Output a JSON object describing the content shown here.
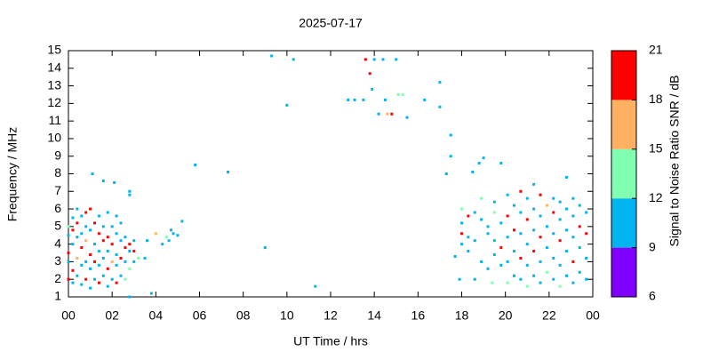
{
  "chart_data": {
    "type": "scatter",
    "title": "2025-07-17",
    "x_label": "UT Time / hrs",
    "y_label": "Frequency / MHz",
    "xlim": [
      0,
      24
    ],
    "xticks": [
      {
        "value": 0,
        "label": "00"
      },
      {
        "value": 2,
        "label": "02"
      },
      {
        "value": 4,
        "label": "04"
      },
      {
        "value": 6,
        "label": "06"
      },
      {
        "value": 8,
        "label": "08"
      },
      10,
      12,
      14,
      16,
      18,
      20,
      22,
      {
        "value": 24,
        "label": "00"
      }
    ],
    "ylim": [
      1,
      15
    ],
    "yticks": [
      1,
      2,
      3,
      4,
      5,
      6,
      7,
      8,
      9,
      10,
      11,
      12,
      13,
      14,
      15
    ],
    "grid": false,
    "colorbar": {
      "label": "Signal to Noise Ratio SNR / dB",
      "lim": [
        6,
        21
      ],
      "ticks": [
        6,
        9,
        12,
        15,
        18,
        21
      ],
      "colors": [
        "#8000ff",
        "#00b4f0",
        "#80ffb0",
        "#ffb060",
        "#ff0000"
      ]
    },
    "x": [
      0.0,
      0.0,
      0.0,
      0.0,
      0.0,
      0.2,
      0.2,
      0.2,
      0.2,
      0.2,
      0.4,
      0.4,
      0.4,
      0.4,
      0.4,
      0.6,
      0.6,
      0.6,
      0.6,
      0.6,
      0.8,
      0.8,
      0.8,
      0.8,
      0.8,
      1.0,
      1.0,
      1.0,
      1.0,
      1.0,
      1.2,
      1.2,
      1.2,
      1.2,
      1.4,
      1.4,
      1.4,
      1.4,
      1.4,
      1.6,
      1.6,
      1.6,
      1.6,
      1.8,
      1.8,
      1.8,
      1.8,
      1.8,
      2.0,
      2.0,
      2.0,
      2.0,
      2.2,
      2.2,
      2.2,
      2.2,
      2.2,
      2.4,
      2.4,
      2.4,
      2.4,
      2.6,
      2.6,
      2.6,
      2.6,
      2.8,
      2.8,
      2.8,
      2.8,
      2.8,
      3.0,
      3.0,
      3.0,
      1.1,
      1.6,
      2.1,
      2.8,
      3.8,
      3.2,
      3.5,
      3.6,
      4.0,
      4.3,
      4.5,
      4.6,
      4.7,
      5.0,
      5.2,
      4.8,
      5.8,
      7.3,
      9.0,
      9.3,
      10.0,
      10.3,
      11.3,
      12.8,
      13.1,
      13.5,
      13.6,
      13.8,
      13.9,
      14.0,
      14.2,
      14.4,
      14.5,
      14.6,
      14.8,
      15.0,
      15.1,
      15.3,
      15.5,
      16.3,
      17.0,
      17.0,
      17.3,
      17.5,
      17.5,
      17.7,
      17.9,
      18.5,
      18.8,
      19.0,
      19.8,
      19.4,
      18.0,
      18.0,
      18.0,
      18.0,
      18.3,
      18.3,
      18.3,
      18.6,
      18.6,
      18.6,
      18.9,
      18.9,
      18.9,
      19.2,
      19.2,
      19.2,
      19.5,
      19.5,
      19.5,
      19.5,
      19.8,
      19.8,
      19.8,
      20.1,
      20.1,
      20.1,
      20.1,
      20.1,
      20.4,
      20.4,
      20.4,
      20.4,
      20.7,
      20.7,
      20.7,
      20.7,
      20.7,
      21.0,
      21.0,
      21.0,
      21.0,
      21.0,
      21.3,
      21.3,
      21.3,
      21.3,
      21.3,
      21.6,
      21.6,
      21.6,
      21.6,
      21.6,
      21.9,
      21.9,
      21.9,
      21.9,
      22.2,
      22.2,
      22.2,
      22.2,
      22.2,
      22.5,
      22.5,
      22.5,
      22.5,
      22.5,
      22.8,
      22.8,
      22.8,
      22.8,
      22.8,
      23.1,
      23.1,
      23.1,
      23.1,
      23.1,
      23.4,
      23.4,
      23.4,
      23.4,
      23.7,
      23.7,
      23.7,
      23.7
    ],
    "values": [
      2.0,
      3.0,
      3.5,
      4.5,
      5.0,
      1.8,
      2.5,
      4.0,
      4.8,
      5.5,
      2.2,
      3.2,
      4.4,
      5.2,
      6.0,
      1.7,
      2.8,
      3.8,
      4.6,
      5.6,
      2.0,
      3.0,
      4.2,
      5.0,
      5.8,
      1.5,
      2.6,
      3.4,
      4.8,
      6.0,
      2.0,
      3.0,
      4.0,
      5.2,
      1.8,
      2.8,
      3.6,
      4.6,
      5.6,
      2.2,
      3.2,
      4.2,
      5.0,
      1.6,
      2.6,
      3.6,
      4.4,
      5.8,
      2.0,
      3.0,
      4.0,
      5.0,
      1.8,
      2.8,
      3.4,
      4.6,
      5.6,
      2.2,
      3.2,
      4.2,
      5.2,
      2.0,
      3.0,
      3.8,
      4.4,
      2.6,
      3.6,
      4.0,
      6.8,
      7.0,
      3.0,
      3.6,
      4.2,
      8.0,
      7.6,
      7.5,
      1.0,
      1.2,
      3.2,
      3.2,
      4.2,
      4.6,
      4.0,
      4.4,
      4.2,
      4.8,
      4.5,
      5.3,
      4.6,
      8.5,
      8.1,
      3.8,
      14.7,
      11.9,
      14.5,
      1.6,
      12.2,
      12.2,
      12.2,
      14.5,
      13.7,
      12.8,
      14.5,
      11.4,
      14.5,
      12.2,
      11.4,
      11.4,
      14.5,
      12.5,
      12.5,
      11.2,
      12.2,
      13.2,
      11.8,
      8.0,
      10.2,
      9.0,
      3.3,
      2.0,
      8.1,
      8.6,
      8.9,
      8.6,
      1.8,
      4.6,
      5.2,
      6.0,
      4.0,
      3.6,
      4.4,
      5.6,
      2.0,
      4.2,
      5.8,
      3.0,
      5.4,
      6.6,
      2.6,
      4.6,
      5.0,
      3.4,
      4.2,
      5.8,
      6.4,
      2.8,
      3.8,
      5.2,
      1.8,
      3.0,
      4.4,
      5.6,
      6.8,
      2.2,
      3.6,
      4.8,
      6.2,
      2.0,
      3.2,
      4.6,
      5.8,
      7.0,
      1.6,
      2.8,
      4.0,
      5.4,
      6.6,
      2.2,
      3.6,
      4.8,
      6.0,
      7.4,
      1.8,
      3.0,
      4.4,
      5.6,
      6.8,
      2.4,
      3.8,
      5.0,
      6.2,
      2.0,
      3.2,
      4.6,
      5.8,
      6.6,
      1.6,
      2.8,
      4.2,
      5.4,
      6.4,
      2.2,
      3.6,
      4.8,
      6.0,
      7.8,
      1.8,
      3.0,
      4.4,
      5.6,
      6.6,
      2.4,
      3.8,
      5.0,
      6.2,
      2.0,
      3.2,
      4.6,
      5.8
    ],
    "snr": [
      19,
      10,
      19,
      10,
      13,
      10,
      19,
      10,
      19,
      10,
      10,
      16,
      10,
      19,
      10,
      10,
      10,
      19,
      10,
      10,
      19,
      10,
      16,
      10,
      19,
      10,
      10,
      19,
      10,
      19,
      10,
      19,
      10,
      19,
      19,
      10,
      10,
      19,
      10,
      10,
      10,
      19,
      10,
      10,
      19,
      10,
      19,
      10,
      10,
      16,
      19,
      10,
      19,
      10,
      10,
      10,
      10,
      10,
      19,
      10,
      10,
      13,
      10,
      19,
      10,
      13,
      10,
      19,
      10,
      10,
      10,
      19,
      10,
      10,
      10,
      10,
      10,
      10,
      13,
      10,
      10,
      16,
      10,
      13,
      10,
      10,
      10,
      10,
      10,
      10,
      10,
      10,
      10,
      10,
      10,
      10,
      10,
      10,
      10,
      19,
      19,
      10,
      10,
      10,
      10,
      10,
      16,
      19,
      10,
      13,
      13,
      10,
      10,
      10,
      10,
      10,
      10,
      10,
      10,
      10,
      10,
      10,
      10,
      10,
      13,
      19,
      10,
      13,
      10,
      10,
      10,
      19,
      10,
      10,
      10,
      10,
      10,
      13,
      10,
      10,
      10,
      10,
      10,
      13,
      10,
      10,
      19,
      10,
      13,
      10,
      10,
      19,
      10,
      10,
      10,
      19,
      10,
      10,
      19,
      10,
      10,
      19,
      13,
      10,
      10,
      19,
      10,
      10,
      19,
      10,
      10,
      10,
      10,
      10,
      19,
      10,
      19,
      13,
      10,
      10,
      16,
      10,
      10,
      10,
      19,
      10,
      13,
      10,
      19,
      10,
      10,
      10,
      10,
      10,
      10,
      10,
      10,
      19,
      10,
      10,
      10,
      10,
      10,
      19,
      10,
      10,
      10,
      19,
      10
    ]
  }
}
